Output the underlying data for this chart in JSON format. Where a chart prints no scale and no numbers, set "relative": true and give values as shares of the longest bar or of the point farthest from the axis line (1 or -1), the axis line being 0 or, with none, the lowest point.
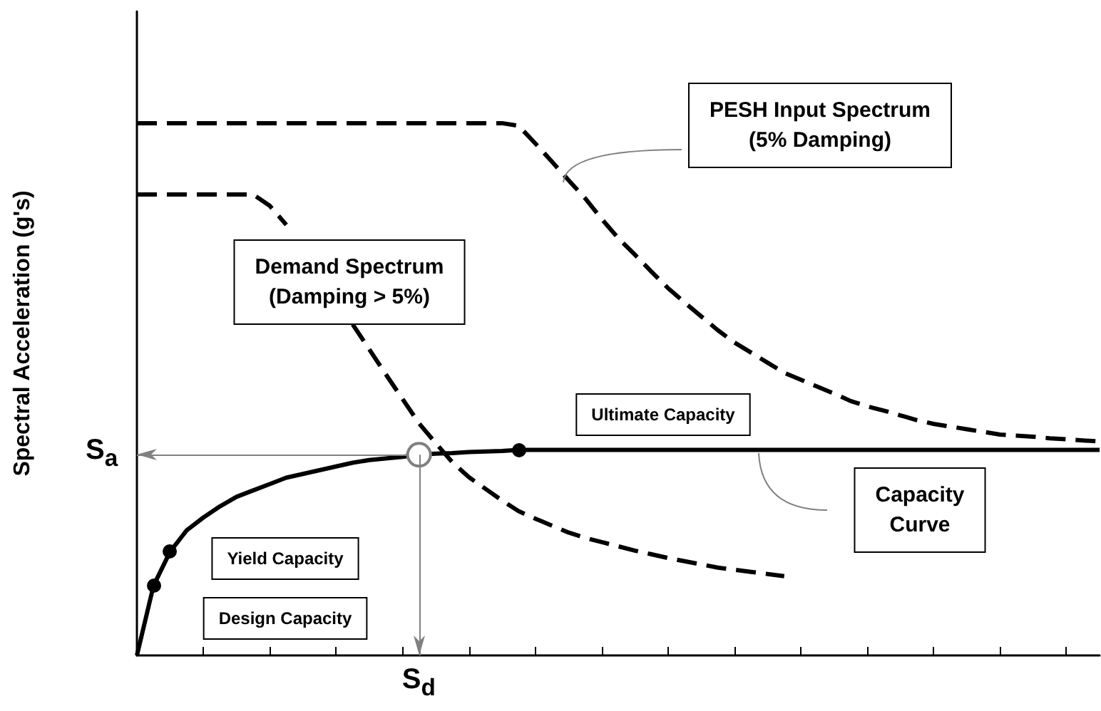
{
  "chart_data": {
    "type": "line",
    "ylabel": "Spectral Acceleration (g's)",
    "relative": true,
    "categories": [
      null,
      null,
      null,
      null,
      null,
      null,
      null,
      null,
      null,
      null,
      null,
      null,
      null,
      null,
      null,
      null,
      null,
      null,
      null,
      null,
      null,
      null,
      null,
      null,
      null,
      null,
      null,
      null,
      null,
      null,
      null,
      null,
      null,
      null,
      null,
      null,
      null,
      null,
      null,
      null,
      null,
      null,
      null,
      null,
      null,
      null,
      null,
      null,
      null,
      null,
      null,
      null,
      null,
      null,
      null,
      null,
      null,
      null,
      null
    ],
    "series": [
      {
        "color": "#000000",
        "line_style": "dashed",
        "values": [
          1,
          1,
          1,
          1,
          1,
          1,
          1,
          1,
          1,
          1,
          1,
          1,
          1,
          1,
          1,
          1,
          1,
          1,
          1,
          1,
          1,
          1,
          1,
          0.995,
          0.962,
          0.928,
          0.893,
          0.859,
          0.82,
          0.784,
          0.753,
          0.721,
          0.69,
          0.663,
          0.637,
          0.611,
          0.588,
          0.569,
          0.55,
          0.531,
          0.518,
          0.505,
          0.492,
          0.478,
          0.468,
          0.46,
          0.451,
          0.442,
          0.435,
          0.43,
          0.425,
          0.42,
          0.415,
          0.413,
          0.411,
          0.408,
          0.406,
          0.404,
          0.402
        ]
      },
      {
        "color": "#000000",
        "line_style": "dashed",
        "values": [
          0.866,
          0.866,
          0.866,
          0.866,
          0.866,
          0.866,
          0.866,
          0.866,
          0.845,
          0.809,
          null,
          null,
          null,
          0.622,
          0.575,
          0.528,
          0.482,
          0.436,
          0.399,
          0.363,
          0.335,
          0.313,
          0.291,
          0.271,
          0.257,
          0.244,
          0.231,
          0.221,
          0.213,
          0.205,
          0.197,
          0.19,
          0.183,
          0.177,
          0.171,
          0.165,
          0.161,
          0.157,
          0.153,
          0.149,
          null,
          null,
          null,
          null,
          null,
          null,
          null,
          null,
          null,
          null,
          null,
          null,
          null,
          null,
          null,
          null,
          null,
          null,
          null
        ]
      },
      {
        "color": "#000000",
        "line_style": "solid",
        "values": [
          0,
          0.131,
          0.195,
          0.235,
          0.259,
          0.28,
          0.298,
          0.31,
          0.322,
          0.334,
          0.341,
          0.348,
          0.355,
          0.362,
          0.367,
          0.37,
          0.373,
          0.377,
          0.379,
          0.38,
          0.382,
          0.383,
          0.384,
          0.386,
          0.386,
          0.386,
          0.386,
          0.386,
          0.386,
          0.386,
          0.386,
          0.386,
          0.386,
          0.386,
          0.386,
          0.386,
          0.386,
          0.386,
          0.386,
          0.386,
          0.386,
          0.386,
          0.386,
          0.386,
          0.386,
          0.386,
          0.386,
          0.386,
          0.386,
          0.386,
          0.386,
          0.386,
          0.386,
          0.386,
          0.386,
          0.386,
          0.386,
          0.386,
          0.386
        ]
      }
    ],
    "ref_lines": [
      {
        "axis": "y",
        "value": 0.377,
        "label": "S$_{a}$",
        "color": "#808080"
      }
    ],
    "annotations": [
      "PESH Input Spectrum\n(5% Damping)",
      "Demand Spectrum\n(Damping > 5%)",
      {
        "text": "Ultimate Capacity",
        "y": 0.386
      },
      "Capacity\nCurve",
      "Yield Capacity",
      "Design Capacity",
      "S$_{d}$"
    ],
    "grid": false
  }
}
